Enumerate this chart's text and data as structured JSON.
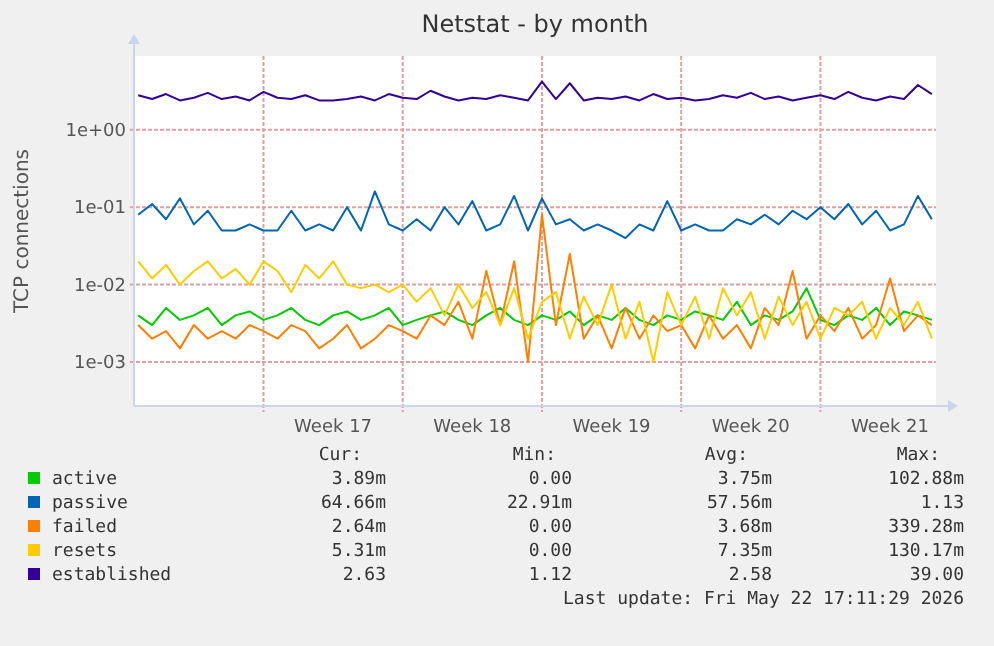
{
  "chart_data": {
    "type": "line",
    "title": "Netstat - by month",
    "ylabel": "TCP connections",
    "log": true,
    "grid": true,
    "legend": "bottom",
    "line_style": "solid",
    "categories": [
      null,
      null,
      null,
      null,
      null,
      null,
      null,
      null,
      null,
      null,
      null,
      null,
      null,
      null,
      "Week 17",
      null,
      null,
      null,
      null,
      null,
      null,
      null,
      null,
      null,
      "Week 18",
      null,
      null,
      null,
      null,
      null,
      null,
      null,
      null,
      null,
      "Week 19",
      null,
      null,
      null,
      null,
      null,
      null,
      null,
      null,
      null,
      "Week 20",
      null,
      null,
      null,
      null,
      null,
      null,
      null,
      null,
      null,
      "Week 21",
      null,
      null,
      null
    ],
    "ylim": [
      0.00027,
      9
    ],
    "yticks": [
      {
        "value": 0.001,
        "label": "1e-03"
      },
      {
        "value": 0.01,
        "label": "1e-02"
      },
      {
        "value": 0.1,
        "label": "1e-01"
      },
      {
        "value": 1,
        "label": "1e+00"
      }
    ],
    "series": [
      {
        "name": "active",
        "color": "#00cc00",
        "values": [
          0.004,
          0.003,
          0.005,
          0.0035,
          0.004,
          0.005,
          0.003,
          0.004,
          0.0045,
          0.0035,
          0.004,
          0.005,
          0.0035,
          0.003,
          0.004,
          0.0045,
          0.0035,
          0.004,
          0.005,
          0.003,
          0.0035,
          0.004,
          0.0045,
          0.0035,
          0.003,
          0.004,
          0.005,
          0.0035,
          0.003,
          0.004,
          0.0035,
          0.0045,
          0.003,
          0.004,
          0.0035,
          0.005,
          0.0035,
          0.003,
          0.004,
          0.0035,
          0.0045,
          0.004,
          0.0035,
          0.006,
          0.003,
          0.004,
          0.0035,
          0.0045,
          0.009,
          0.0035,
          0.003,
          0.004,
          0.0035,
          0.005,
          0.003,
          0.0045,
          0.004,
          0.0035
        ]
      },
      {
        "name": "passive",
        "color": "#0066b3",
        "values": [
          0.08,
          0.11,
          0.07,
          0.13,
          0.06,
          0.09,
          0.05,
          0.05,
          0.06,
          0.05,
          0.05,
          0.09,
          0.05,
          0.06,
          0.05,
          0.1,
          0.05,
          0.16,
          0.06,
          0.05,
          0.07,
          0.05,
          0.1,
          0.06,
          0.12,
          0.05,
          0.06,
          0.14,
          0.05,
          0.13,
          0.06,
          0.07,
          0.05,
          0.06,
          0.05,
          0.04,
          0.06,
          0.05,
          0.12,
          0.05,
          0.06,
          0.05,
          0.05,
          0.07,
          0.06,
          0.08,
          0.06,
          0.09,
          0.07,
          0.1,
          0.07,
          0.11,
          0.06,
          0.09,
          0.05,
          0.06,
          0.14,
          0.07
        ]
      },
      {
        "name": "failed",
        "color": "#ff8000",
        "values": [
          0.003,
          0.002,
          0.0025,
          0.0015,
          0.003,
          0.002,
          0.0025,
          0.002,
          0.003,
          0.0025,
          0.002,
          0.003,
          0.0025,
          0.0015,
          0.002,
          0.003,
          0.0015,
          0.002,
          0.003,
          0.0025,
          0.002,
          0.004,
          0.003,
          0.006,
          0.002,
          0.015,
          0.003,
          0.02,
          0.001,
          0.08,
          0.003,
          0.025,
          0.002,
          0.004,
          0.0015,
          0.005,
          0.002,
          0.004,
          0.0025,
          0.003,
          0.0015,
          0.004,
          0.002,
          0.003,
          0.0015,
          0.005,
          0.003,
          0.015,
          0.002,
          0.004,
          0.0025,
          0.005,
          0.002,
          0.003,
          0.012,
          0.0025,
          0.004,
          0.003
        ]
      },
      {
        "name": "resets",
        "color": "#ffcc00",
        "values": [
          0.02,
          0.012,
          0.018,
          0.01,
          0.015,
          0.02,
          0.012,
          0.016,
          0.01,
          0.02,
          0.015,
          0.008,
          0.018,
          0.012,
          0.02,
          0.01,
          0.009,
          0.01,
          0.008,
          0.01,
          0.006,
          0.009,
          0.004,
          0.01,
          0.005,
          0.008,
          0.003,
          0.009,
          0.002,
          0.006,
          0.008,
          0.002,
          0.007,
          0.003,
          0.01,
          0.002,
          0.006,
          0.001,
          0.008,
          0.003,
          0.007,
          0.002,
          0.009,
          0.004,
          0.008,
          0.002,
          0.007,
          0.003,
          0.006,
          0.002,
          0.005,
          0.004,
          0.006,
          0.002,
          0.005,
          0.003,
          0.006,
          0.002
        ]
      },
      {
        "name": "established",
        "color": "#330099",
        "values": [
          2.8,
          2.5,
          2.9,
          2.4,
          2.6,
          3.0,
          2.5,
          2.7,
          2.4,
          3.1,
          2.6,
          2.5,
          2.8,
          2.4,
          2.4,
          2.5,
          2.7,
          2.4,
          2.9,
          2.6,
          2.5,
          3.2,
          2.7,
          2.4,
          2.6,
          2.5,
          2.8,
          2.6,
          2.4,
          4.2,
          2.5,
          4.0,
          2.4,
          2.6,
          2.5,
          2.7,
          2.4,
          2.9,
          2.5,
          2.6,
          2.4,
          2.5,
          2.8,
          2.6,
          3.0,
          2.5,
          2.7,
          2.4,
          2.6,
          2.8,
          2.5,
          3.1,
          2.6,
          2.4,
          2.7,
          2.5,
          3.8,
          2.9
        ]
      }
    ],
    "annotations": [
      "Cur:",
      "Min:",
      "Avg:",
      "Max:",
      "3.89m",
      "0.00",
      "3.75m",
      "102.88m",
      "64.66m",
      "22.91m",
      "57.56m",
      "1.13",
      "2.64m",
      "0.00",
      "3.68m",
      "339.28m",
      "5.31m",
      "0.00",
      "7.35m",
      "130.17m",
      "2.63",
      "1.12",
      "2.58",
      "39.00",
      "Last update: Fri May 22 17:11:29 2026"
    ]
  }
}
